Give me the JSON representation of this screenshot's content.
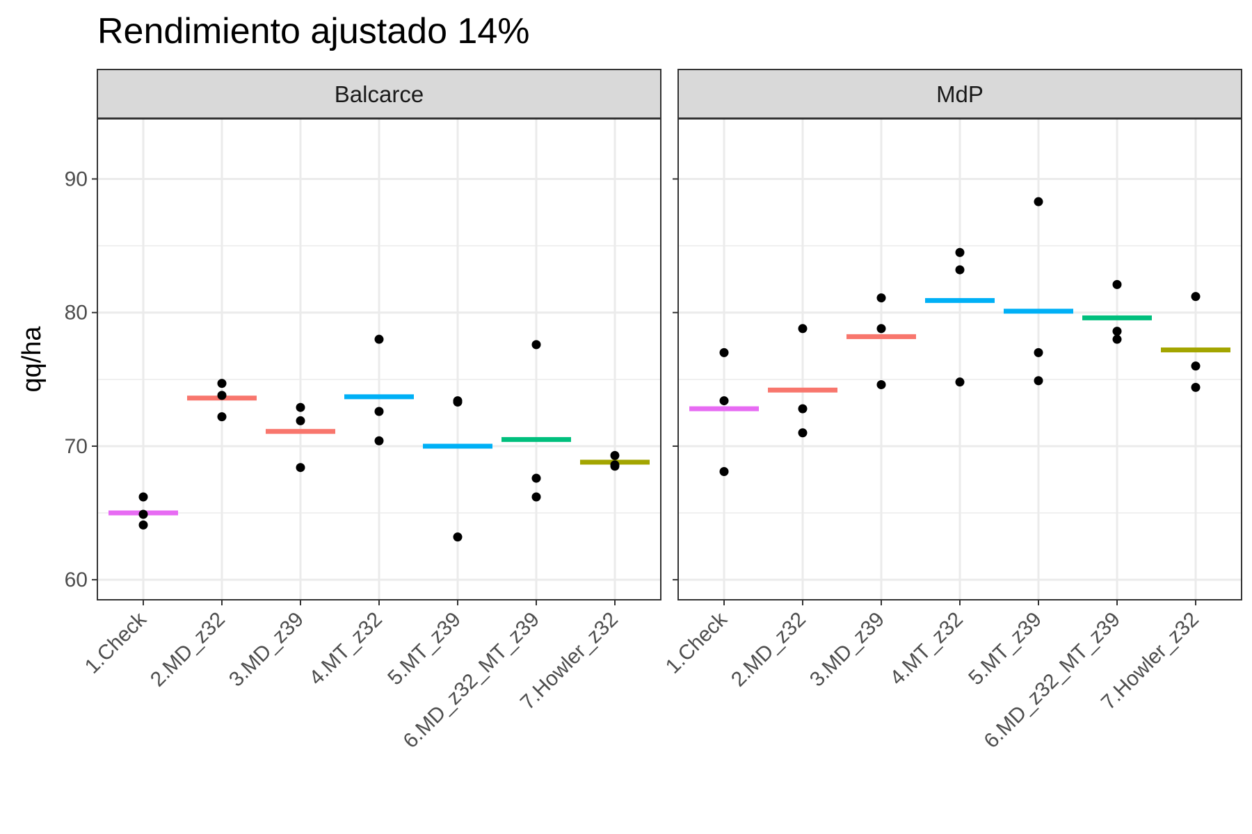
{
  "chart_data": {
    "type": "scatter",
    "title": "Rendimiento ajustado 14%",
    "xlabel": "",
    "ylabel": "qq/ha",
    "ylim": [
      58.5,
      94.5
    ],
    "yticks": [
      60,
      70,
      80,
      90
    ],
    "grid": true,
    "legend": "none",
    "categories": [
      "1.Check",
      "2.MD_z32",
      "3.MD_z39",
      "4.MT_z32",
      "5.MT_z39",
      "6.MD_z32_MT_z39",
      "7.Howler_z32"
    ],
    "colors": {
      "1.Check": "#E76BF3",
      "2.MD_z32": "#F8766D",
      "3.MD_z39": "#F8766D",
      "4.MT_z32": "#00B0F6",
      "5.MT_z39": "#00B0F6",
      "6.MD_z32_MT_z39": "#00BF7D",
      "7.Howler_z32": "#A3A500"
    },
    "panels": [
      {
        "name": "Balcarce",
        "means": [
          65.0,
          73.6,
          71.1,
          73.7,
          70.0,
          70.5,
          68.8
        ],
        "points": [
          [
            66.2,
            64.9,
            64.1
          ],
          [
            74.7,
            73.8,
            72.2
          ],
          [
            72.9,
            71.9,
            68.4
          ],
          [
            78.0,
            72.6,
            70.4
          ],
          [
            73.4,
            73.3,
            63.2
          ],
          [
            77.6,
            67.6,
            66.2
          ],
          [
            69.3,
            68.6,
            68.5
          ]
        ]
      },
      {
        "name": "MdP",
        "means": [
          72.8,
          74.2,
          78.2,
          80.9,
          80.1,
          79.6,
          77.2
        ],
        "points": [
          [
            77.0,
            73.4,
            68.1
          ],
          [
            78.8,
            72.8,
            71.0
          ],
          [
            81.1,
            78.8,
            74.6
          ],
          [
            84.5,
            83.2,
            74.8
          ],
          [
            88.3,
            77.0,
            74.9
          ],
          [
            82.1,
            78.6,
            78.0
          ],
          [
            81.2,
            76.0,
            74.4
          ]
        ]
      }
    ]
  }
}
